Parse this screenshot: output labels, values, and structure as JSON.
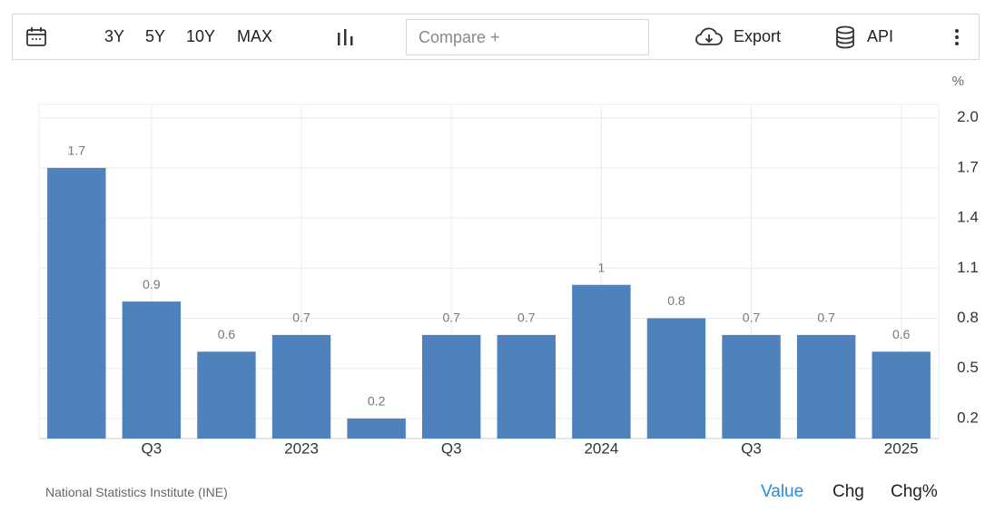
{
  "toolbar": {
    "ranges": [
      "3Y",
      "5Y",
      "10Y",
      "MAX"
    ],
    "compare": "Compare +",
    "export": "Export",
    "api": "API"
  },
  "chart_data": {
    "type": "bar",
    "unit": "%",
    "categories": [
      null,
      "Q3",
      null,
      "2023",
      null,
      "Q3",
      null,
      "2024",
      null,
      "Q3",
      null,
      "2025"
    ],
    "values": [
      1.7,
      0.9,
      0.6,
      0.7,
      0.2,
      0.7,
      0.7,
      1,
      0.8,
      0.7,
      0.7,
      0.6
    ],
    "color": "#4f81bd",
    "ylim": [
      0.08,
      2.08
    ],
    "yticks": [
      0.2,
      0.5,
      0.8,
      1.1,
      1.4,
      1.7,
      {
        "value": 2,
        "label": "2.0"
      }
    ],
    "grid": true,
    "axis_side": "right"
  },
  "footer": {
    "source": "National Statistics Institute (INE)",
    "tabs": [
      "Value",
      "Chg",
      "Chg%"
    ]
  }
}
